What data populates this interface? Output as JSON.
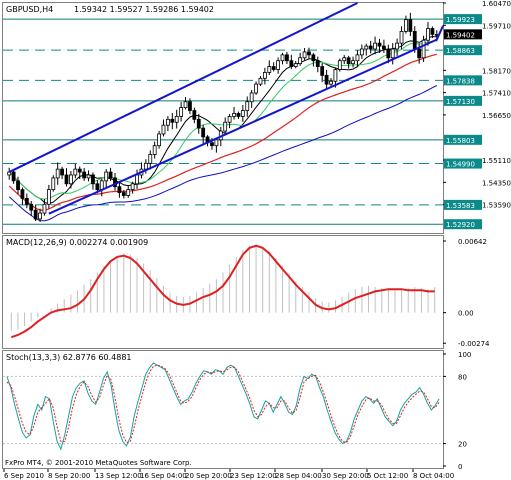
{
  "chart_data": [
    {
      "type": "candlestick",
      "symbol": "GBPUSD,H4",
      "quote": "1.59342 1.59527 1.59286 1.59402",
      "ylim": [
        1.5262,
        1.6047
      ],
      "price_ticks": [
        {
          "value": 1.6047,
          "label": "1.60470"
        },
        {
          "value": 1.5971,
          "label": "1.59710"
        },
        {
          "value": 1.5817,
          "label": "1.58170"
        },
        {
          "value": 1.5741,
          "label": "1.57410"
        },
        {
          "value": 1.5665,
          "label": "1.56650"
        },
        {
          "value": 1.5511,
          "label": "1.55110"
        },
        {
          "value": 1.5435,
          "label": "1.54350"
        },
        {
          "value": 1.5359,
          "label": "1.53590"
        }
      ],
      "level_labels": [
        {
          "value": 1.5992,
          "label": "1.59923",
          "color": "#0a8a8a"
        },
        {
          "value": 1.594,
          "label": "1.59402",
          "color": "#000000"
        },
        {
          "value": 1.5886,
          "label": "1.58863",
          "color": "#0a8a8a"
        },
        {
          "value": 1.5783,
          "label": "1.57838",
          "color": "#0a8a8a"
        },
        {
          "value": 1.5713,
          "label": "1.57130",
          "color": "#0a8a8a"
        },
        {
          "value": 1.558,
          "label": "1.55803",
          "color": "#0a8a8a"
        },
        {
          "value": 1.5499,
          "label": "1.54990",
          "color": "#0a8a8a"
        },
        {
          "value": 1.5358,
          "label": "1.53583",
          "color": "#0a8a8a"
        },
        {
          "value": 1.5292,
          "label": "1.52920",
          "color": "#0a8a8a"
        }
      ],
      "solid_levels": [
        1.5992,
        1.5713,
        1.558,
        1.5292
      ],
      "dashed_levels": [
        1.5886,
        1.5783,
        1.5499,
        1.5358
      ],
      "closes": [
        1.547,
        1.544,
        1.541,
        1.538,
        1.536,
        1.534,
        1.531,
        1.533,
        1.536,
        1.541,
        1.545,
        1.548,
        1.546,
        1.543,
        1.546,
        1.548,
        1.547,
        1.545,
        1.546,
        1.543,
        1.541,
        1.544,
        1.547,
        1.545,
        1.542,
        1.54,
        1.539,
        1.541,
        1.543,
        1.546,
        1.548,
        1.55,
        1.553,
        1.556,
        1.56,
        1.563,
        1.565,
        1.564,
        1.566,
        1.569,
        1.571,
        1.568,
        1.565,
        1.562,
        1.559,
        1.557,
        1.556,
        1.558,
        1.561,
        1.564,
        1.566,
        1.567,
        1.566,
        1.568,
        1.571,
        1.574,
        1.577,
        1.579,
        1.581,
        1.583,
        1.582,
        1.585,
        1.587,
        1.585,
        1.583,
        1.584,
        1.586,
        1.588,
        1.587,
        1.585,
        1.583,
        1.58,
        1.577,
        1.578,
        1.582,
        1.585,
        1.586,
        1.584,
        1.585,
        1.587,
        1.589,
        1.59,
        1.589,
        1.591,
        1.59,
        1.589,
        1.586,
        1.589,
        1.591,
        1.595,
        1.599,
        1.595,
        1.589,
        1.586,
        1.592,
        1.596,
        1.594,
        1.594
      ],
      "channel": {
        "upper": [
          [
            1.547,
            0
          ],
          [
            1.6047,
            79
          ]
        ],
        "lower": [
          [
            1.5328,
            9
          ],
          [
            1.5922,
            97
          ]
        ]
      },
      "moving_averages": [
        {
          "period": 8,
          "color": "#000000"
        },
        {
          "period": 13,
          "color": "#33cc66"
        },
        {
          "period": 40,
          "color": "#e02020"
        },
        {
          "period": 70,
          "color": "#1010c0"
        }
      ],
      "x_labels": [
        "6 Sep 2010",
        "8 Sep 20:00",
        "13 Sep 12:00",
        "16 Sep 04:00",
        "20 Sep 20:00",
        "23 Sep 12:00",
        "28 Sep 04:00",
        "30 Sep 20:00",
        "5 Oct 12:00",
        "8 Oct 04:00"
      ]
    },
    {
      "type": "histogram+line",
      "name": "MACD(12,26,9) 0.002274 0.001909",
      "ylim": [
        -0.0029,
        0.0066
      ],
      "ticks": [
        {
          "value": 0.00642,
          "label": "0.00642"
        },
        {
          "value": 0.0,
          "label": "0.00"
        },
        {
          "value": -0.00274,
          "label": "-0.00274"
        }
      ],
      "histogram": [
        -0.0016,
        -0.0015,
        -0.0012,
        -0.0008,
        -0.0004,
        0.0,
        0.0004,
        0.0008,
        0.0012,
        0.0016,
        0.002,
        0.0025,
        0.003,
        0.0036,
        0.0042,
        0.0047,
        0.0051,
        0.0053,
        0.0052,
        0.0049,
        0.0044,
        0.0038,
        0.0031,
        0.0024,
        0.0018,
        0.0015,
        0.0014,
        0.0015,
        0.0018,
        0.0022,
        0.0026,
        0.003,
        0.0036,
        0.0043,
        0.005,
        0.0056,
        0.006,
        0.0061,
        0.0059,
        0.0055,
        0.0049,
        0.0042,
        0.0035,
        0.0028,
        0.0023,
        0.0018,
        0.0013,
        0.001,
        0.0009,
        0.0011,
        0.0014,
        0.0018,
        0.0021,
        0.0023,
        0.0024,
        0.0023,
        0.0022,
        0.0022,
        0.0021,
        0.0021,
        0.0022,
        0.0023,
        0.0022,
        0.0021,
        0.0023
      ],
      "signal": [
        -0.0022,
        -0.002,
        -0.0017,
        -0.0013,
        -0.0008,
        -0.0004,
        0.0,
        0.0002,
        0.0003,
        0.0004,
        0.0007,
        0.0012,
        0.002,
        0.003,
        0.0039,
        0.0046,
        0.005,
        0.0051,
        0.0049,
        0.0044,
        0.0037,
        0.003,
        0.0023,
        0.0016,
        0.0011,
        0.0008,
        0.0007,
        0.0008,
        0.0011,
        0.0014,
        0.0016,
        0.0019,
        0.0024,
        0.0032,
        0.0042,
        0.0052,
        0.0058,
        0.006,
        0.0058,
        0.0053,
        0.0046,
        0.0039,
        0.0032,
        0.0025,
        0.0019,
        0.0013,
        0.0007,
        0.0004,
        0.0003,
        0.0004,
        0.0007,
        0.001,
        0.0013,
        0.0015,
        0.0017,
        0.0019,
        0.002,
        0.0021,
        0.0021,
        0.0021,
        0.002,
        0.002,
        0.002,
        0.0019,
        0.0019
      ],
      "colors": {
        "histogram": "#c0c0c0",
        "signal": "#e02020"
      }
    },
    {
      "type": "line",
      "name": "Stoch(13,3,3) 62.8776 60.4881",
      "ylim": [
        0,
        100
      ],
      "ticks": [
        {
          "value": 100,
          "label": "100"
        },
        {
          "value": 80,
          "label": "80"
        },
        {
          "value": 20,
          "label": "20"
        },
        {
          "value": 0,
          "label": "0"
        }
      ],
      "main": [
        80,
        70,
        55,
        42,
        30,
        25,
        28,
        45,
        55,
        50,
        62,
        60,
        40,
        22,
        15,
        28,
        45,
        62,
        70,
        74,
        76,
        65,
        58,
        55,
        66,
        78,
        84,
        72,
        50,
        32,
        22,
        18,
        26,
        45,
        58,
        70,
        82,
        88,
        92,
        90,
        88,
        86,
        78,
        70,
        62,
        55,
        58,
        60,
        66,
        74,
        80,
        85,
        84,
        82,
        86,
        85,
        82,
        88,
        90,
        88,
        80,
        72,
        64,
        55,
        44,
        42,
        50,
        58,
        56,
        48,
        55,
        62,
        56,
        48,
        46,
        54,
        70,
        80,
        78,
        82,
        80,
        70,
        62,
        50,
        40,
        30,
        24,
        20,
        22,
        30,
        42,
        50,
        58,
        62,
        60,
        56,
        60,
        52,
        44,
        40,
        36,
        40,
        50,
        56,
        60,
        64,
        66,
        70,
        64,
        56,
        50,
        54,
        60
      ],
      "signal": [
        75,
        72,
        62,
        50,
        38,
        30,
        28,
        36,
        48,
        52,
        56,
        60,
        52,
        35,
        22,
        22,
        35,
        52,
        64,
        71,
        75,
        71,
        63,
        57,
        61,
        72,
        81,
        77,
        61,
        42,
        28,
        21,
        22,
        35,
        50,
        63,
        75,
        84,
        89,
        90,
        89,
        87,
        82,
        74,
        66,
        58,
        56,
        58,
        62,
        70,
        77,
        82,
        84,
        83,
        84,
        85,
        84,
        86,
        88,
        88,
        84,
        76,
        68,
        60,
        50,
        44,
        46,
        53,
        56,
        52,
        52,
        58,
        58,
        52,
        47,
        50,
        62,
        75,
        78,
        80,
        81,
        75,
        66,
        56,
        45,
        35,
        27,
        22,
        21,
        26,
        36,
        46,
        53,
        59,
        61,
        58,
        58,
        55,
        48,
        42,
        38,
        38,
        45,
        52,
        57,
        61,
        64,
        67,
        66,
        60,
        53,
        52,
        57
      ],
      "levels": [
        80,
        20
      ],
      "colors": {
        "main": "#17a2a2",
        "signal": "#e02020"
      }
    }
  ],
  "footer": "FxPro MT4, © 2001-2010 MetaQuotes Software Corp."
}
